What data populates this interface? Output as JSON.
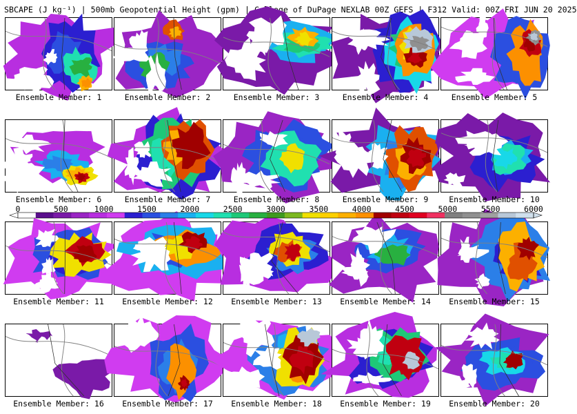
{
  "title": "SBCAPE (J kg⁻¹) | 500mb Geopotential Height (gpm) | College of DuPage NEXLAB 00Z GEFS | F312 Valid: 00Z FRI JUN 20 2025",
  "colorbar": {
    "tick_labels": [
      "0",
      "500",
      "1000",
      "1500",
      "2000",
      "2500",
      "3000",
      "3500",
      "4000",
      "4500",
      "5000",
      "5500",
      "6000"
    ],
    "range": [
      0,
      6000
    ],
    "colors": [
      "#ffffff",
      "#5a0f8c",
      "#7a1aa8",
      "#9a25c4",
      "#b82ee0",
      "#d03cf0",
      "#2b1fd0",
      "#2b4fe0",
      "#2b7fe8",
      "#1ab0f0",
      "#18d8e8",
      "#20e0b0",
      "#1ec878",
      "#28b040",
      "#3e9a20",
      "#7cb820",
      "#f0e000",
      "#fcd000",
      "#fcb000",
      "#fc9000",
      "#a00000",
      "#c00010",
      "#e00020",
      "#f03060",
      "#808080",
      "#909090",
      "#a0a0a0",
      "#b8c8d8",
      "#d0e0ec"
    ]
  },
  "members": [
    {
      "label": "Ensemble Member: 1"
    },
    {
      "label": "Ensemble Member: 2"
    },
    {
      "label": "Ensemble Member: 3"
    },
    {
      "label": "Ensemble Member: 4"
    },
    {
      "label": "Ensemble Member: 5"
    },
    {
      "label": "Ensemble Member: 6"
    },
    {
      "label": "Ensemble Member: 7"
    },
    {
      "label": "Ensemble Member: 8"
    },
    {
      "label": "Ensemble Member: 9"
    },
    {
      "label": "Ensemble Member: 10"
    },
    {
      "label": "Ensemble Member: 11"
    },
    {
      "label": "Ensemble Member: 12"
    },
    {
      "label": "Ensemble Member: 13"
    },
    {
      "label": "Ensemble Member: 14"
    },
    {
      "label": "Ensemble Member: 15"
    },
    {
      "label": "Ensemble Member: 16"
    },
    {
      "label": "Ensemble Member: 17"
    },
    {
      "label": "Ensemble Member: 18"
    },
    {
      "label": "Ensemble Member: 19"
    },
    {
      "label": "Ensemble Member: 20"
    }
  ]
}
